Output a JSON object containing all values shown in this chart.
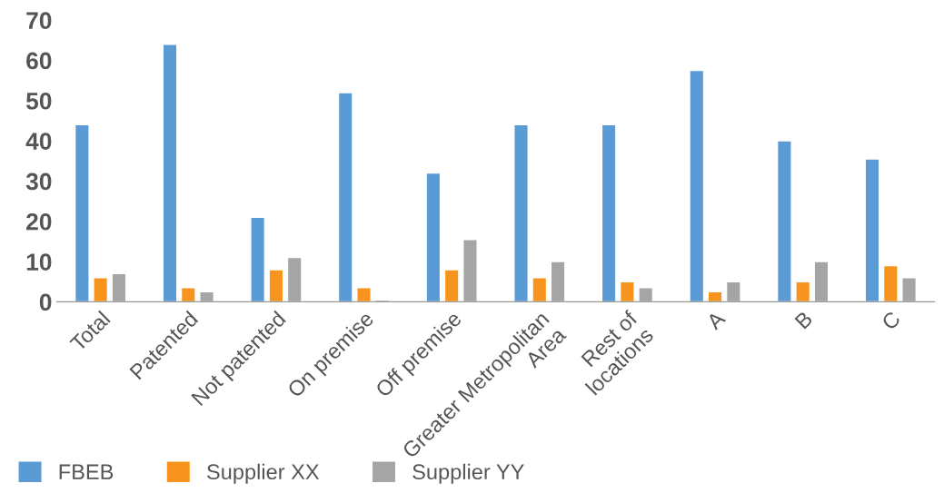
{
  "chart_data": {
    "type": "bar",
    "categories": [
      "Total",
      "Patented",
      "Not patented",
      "On premise",
      "Off premise",
      "Greater Metropolitan\nArea",
      "Rest of\nlocations",
      "A",
      "B",
      "C"
    ],
    "series": [
      {
        "name": "FBEB",
        "color": "#5b9bd5",
        "values": [
          44,
          64,
          21,
          52,
          32,
          44,
          44,
          57.5,
          40,
          35.5
        ]
      },
      {
        "name": "Supplier XX",
        "color": "#f7941d",
        "values": [
          6,
          3.5,
          8,
          3.5,
          8,
          6,
          5,
          2.5,
          5,
          9
        ]
      },
      {
        "name": "Supplier YY",
        "color": "#a5a5a5",
        "values": [
          7,
          2.5,
          11,
          0.5,
          15.5,
          10,
          3.5,
          5,
          10,
          6
        ]
      }
    ],
    "ylim": [
      0,
      70
    ],
    "yticks": [
      0,
      10,
      20,
      30,
      40,
      50,
      60,
      70
    ],
    "grid": false,
    "legend": "bottom left"
  }
}
